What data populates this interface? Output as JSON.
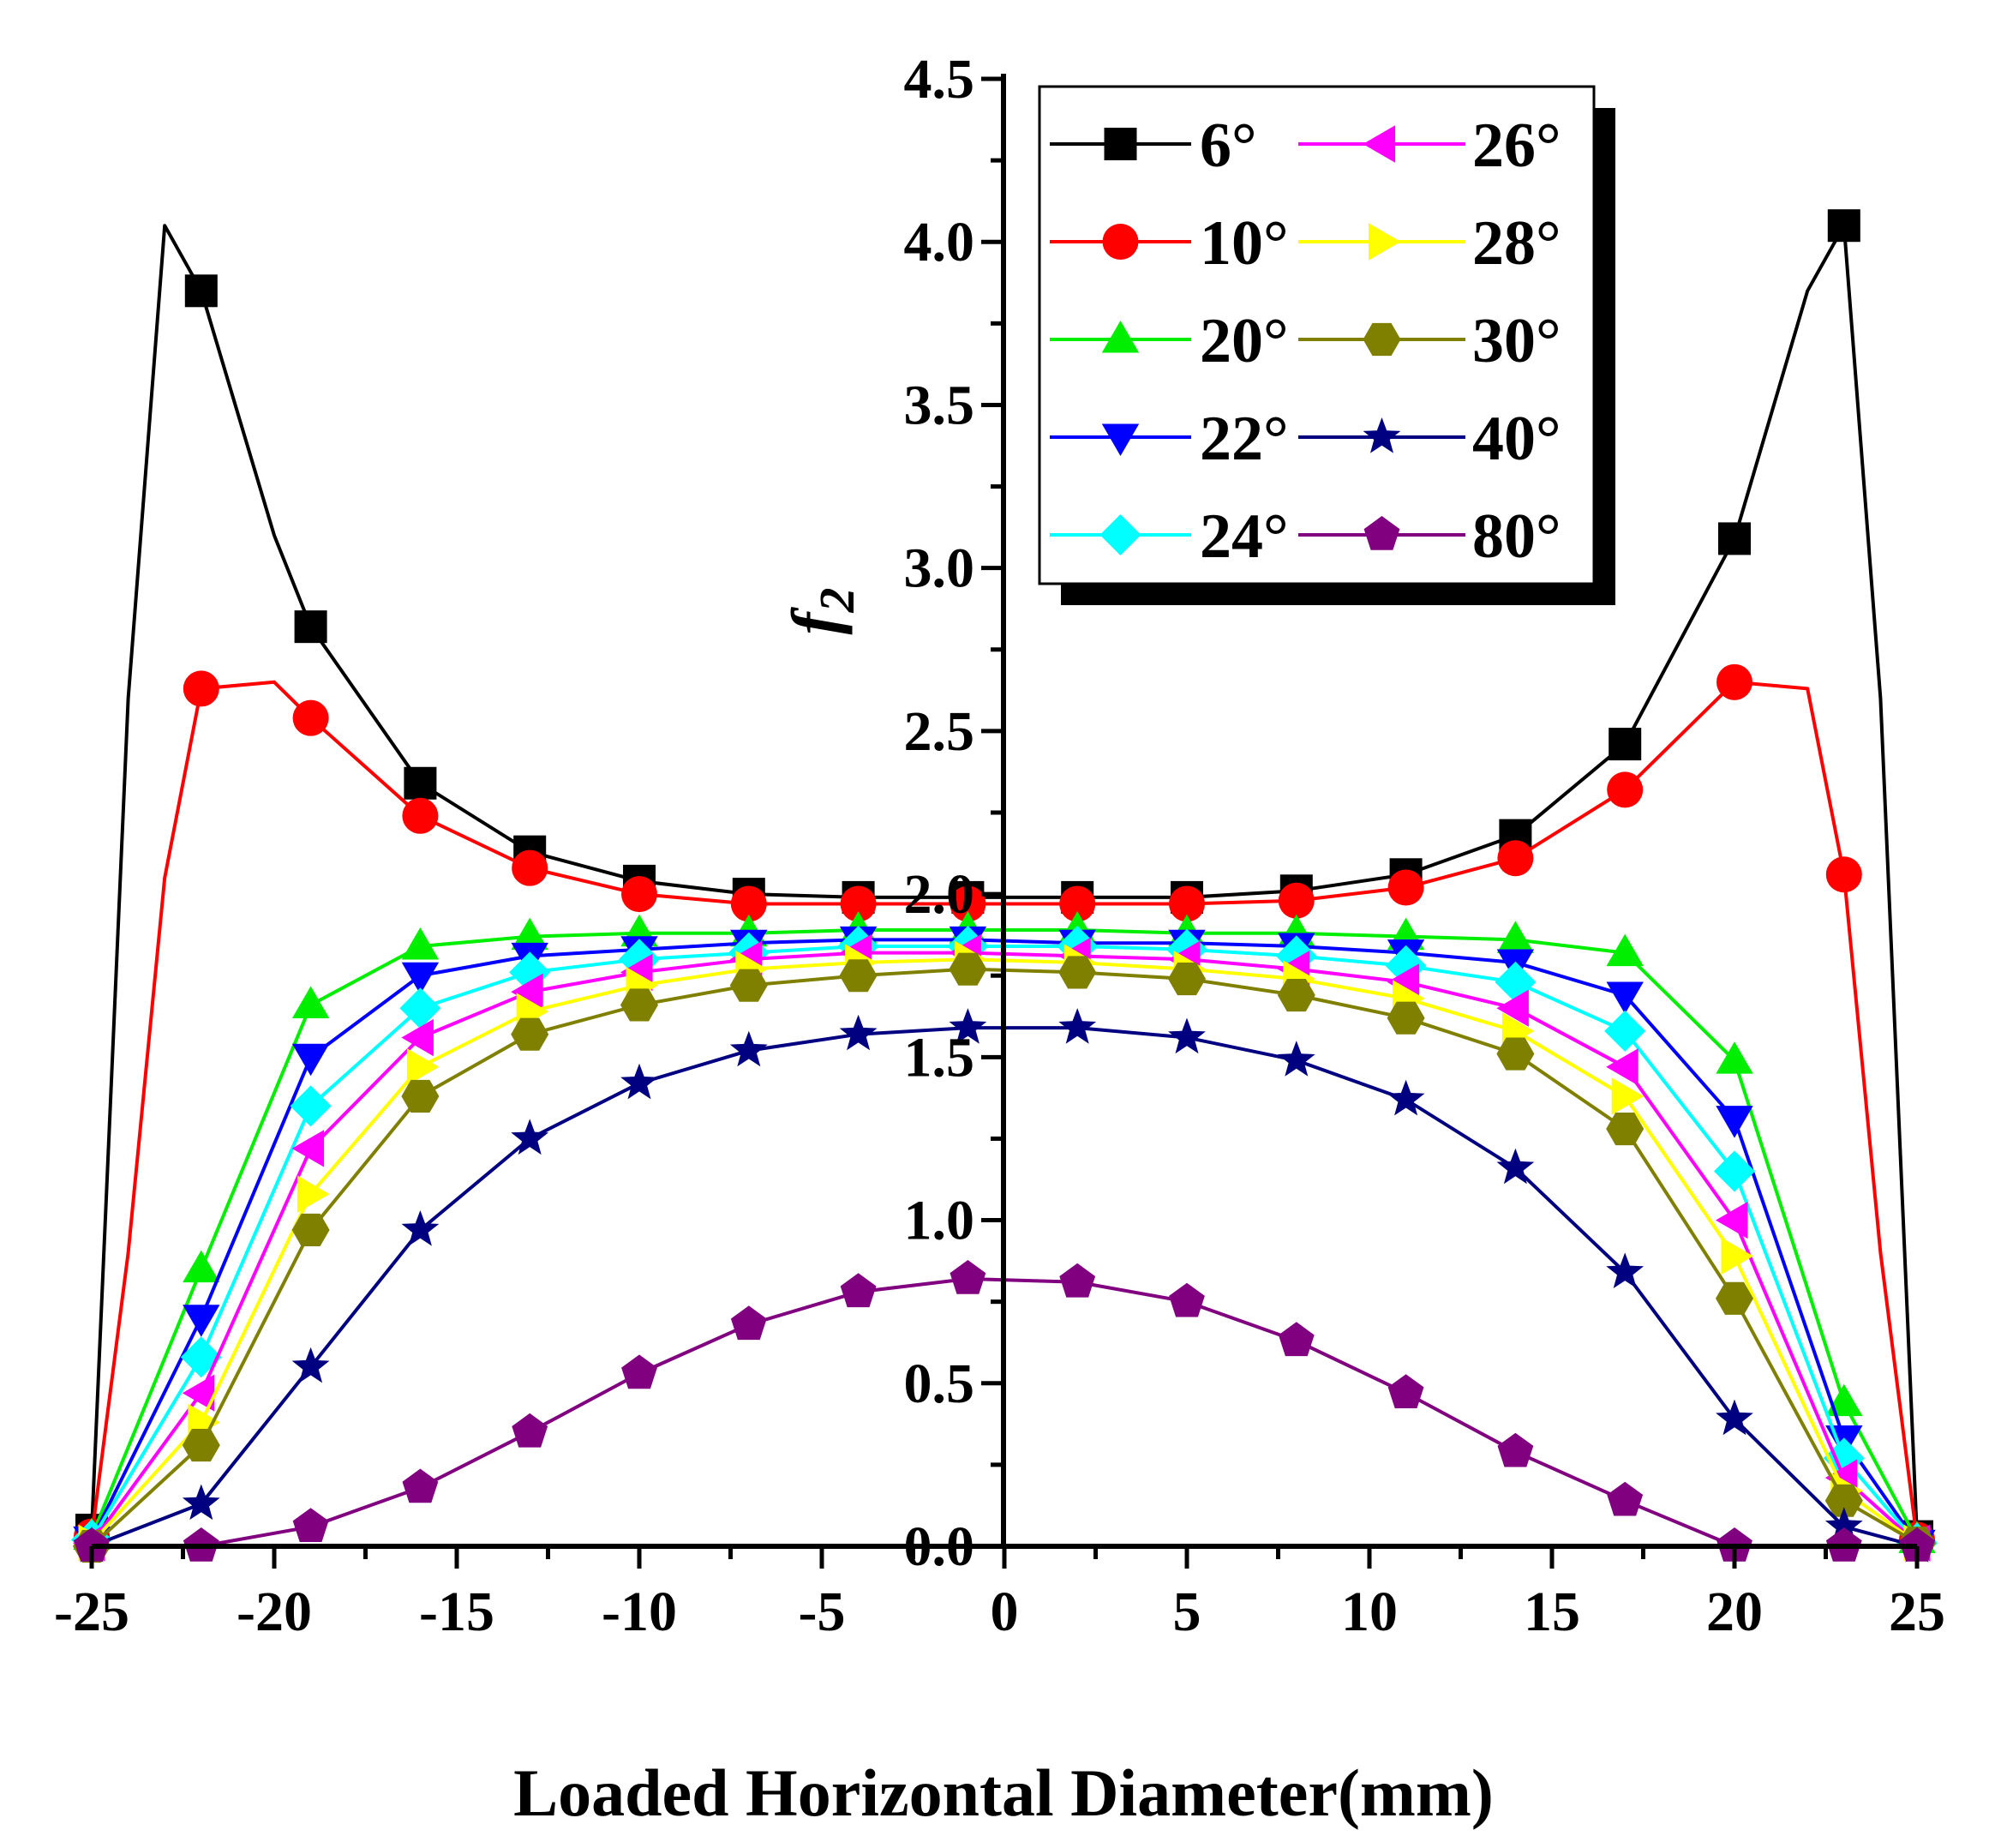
{
  "chart_data": {
    "type": "line",
    "title": "",
    "xlabel": "Loaded Horizontal Diameter(mm)",
    "ylabel": "f",
    "ylabel_subscript": "2",
    "xlim": [
      -25,
      25
    ],
    "ylim": [
      0,
      4.5
    ],
    "xticks": [
      -25,
      -20,
      -15,
      -10,
      -5,
      0,
      5,
      10,
      15,
      20,
      25
    ],
    "xtick_labels": [
      "-25",
      "-20",
      "-15",
      "-10",
      "-5",
      "0",
      "5",
      "10",
      "15",
      "20",
      "25"
    ],
    "yticks": [
      0,
      0.5,
      1,
      1.5,
      2,
      2.5,
      3,
      3.5,
      4,
      4.5
    ],
    "ytick_labels": [
      "0.0",
      "0.5",
      "1.0",
      "1.5",
      "2.0",
      "2.5",
      "3.0",
      "3.5",
      "4.0",
      "4.5"
    ],
    "grid": false,
    "legend_position": "top-right",
    "marker_x": [
      -25,
      -22,
      -19,
      -16,
      -13,
      -10,
      -7,
      -4,
      -1,
      2,
      5,
      8,
      11,
      14,
      17,
      20,
      23,
      25
    ],
    "series": [
      {
        "name": "6°",
        "color": "#000000",
        "marker": "square",
        "values": [
          0.05,
          3.85,
          2.82,
          2.34,
          2.13,
          2.04,
          2.0,
          1.99,
          1.99,
          1.99,
          1.99,
          2.01,
          2.06,
          2.18,
          2.46,
          3.09,
          4.05,
          0.03
        ]
      },
      {
        "name": "10°",
        "color": "#ff0000",
        "marker": "circle",
        "values": [
          0.03,
          2.63,
          2.54,
          2.24,
          2.08,
          2.0,
          1.97,
          1.97,
          1.97,
          1.97,
          1.97,
          1.98,
          2.02,
          2.11,
          2.32,
          2.65,
          2.06,
          0.02
        ]
      },
      {
        "name": "20°",
        "color": "#00ee00",
        "marker": "triangle-up",
        "values": [
          0.03,
          0.85,
          1.66,
          1.84,
          1.87,
          1.88,
          1.88,
          1.89,
          1.89,
          1.89,
          1.88,
          1.88,
          1.87,
          1.86,
          1.82,
          1.49,
          0.44,
          0.02
        ]
      },
      {
        "name": "22°",
        "color": "#0000ff",
        "marker": "triangle-down",
        "values": [
          0.02,
          0.7,
          1.5,
          1.75,
          1.81,
          1.83,
          1.85,
          1.86,
          1.86,
          1.85,
          1.85,
          1.84,
          1.82,
          1.79,
          1.69,
          1.31,
          0.33,
          0.01
        ]
      },
      {
        "name": "24°",
        "color": "#00ffff",
        "marker": "diamond",
        "values": [
          0.02,
          0.58,
          1.35,
          1.65,
          1.76,
          1.8,
          1.82,
          1.84,
          1.84,
          1.84,
          1.83,
          1.81,
          1.78,
          1.73,
          1.58,
          1.15,
          0.27,
          0.01
        ]
      },
      {
        "name": "26°",
        "color": "#ff00ff",
        "marker": "triangle-left",
        "values": [
          0.01,
          0.47,
          1.22,
          1.56,
          1.7,
          1.76,
          1.8,
          1.82,
          1.82,
          1.81,
          1.8,
          1.77,
          1.73,
          1.65,
          1.47,
          1.0,
          0.21,
          0.01
        ]
      },
      {
        "name": "28°",
        "color": "#ffff00",
        "marker": "triangle-right",
        "values": [
          0.01,
          0.38,
          1.08,
          1.47,
          1.64,
          1.72,
          1.77,
          1.79,
          1.8,
          1.79,
          1.77,
          1.74,
          1.68,
          1.58,
          1.38,
          0.89,
          0.17,
          0.01
        ]
      },
      {
        "name": "30°",
        "color": "#808000",
        "marker": "hexagon",
        "values": [
          0.0,
          0.31,
          0.97,
          1.38,
          1.57,
          1.66,
          1.72,
          1.75,
          1.77,
          1.76,
          1.74,
          1.69,
          1.62,
          1.51,
          1.28,
          0.76,
          0.14,
          0.01
        ]
      },
      {
        "name": "40°",
        "color": "#000080",
        "marker": "star",
        "values": [
          0.0,
          0.13,
          0.55,
          0.97,
          1.25,
          1.42,
          1.52,
          1.57,
          1.59,
          1.59,
          1.56,
          1.49,
          1.37,
          1.16,
          0.84,
          0.39,
          0.06,
          0.0
        ]
      },
      {
        "name": "80°",
        "color": "#800080",
        "marker": "pentagon",
        "values": [
          0.0,
          0.0,
          0.06,
          0.18,
          0.35,
          0.53,
          0.68,
          0.78,
          0.82,
          0.81,
          0.75,
          0.63,
          0.47,
          0.29,
          0.14,
          0.0,
          0.0,
          0.0
        ]
      }
    ],
    "extra_curve_points": {
      "6°": [
        [
          -24,
          2.6
        ],
        [
          -23,
          4.05
        ],
        [
          -20,
          3.1
        ],
        [
          22,
          3.85
        ],
        [
          24,
          2.6
        ]
      ],
      "10°": [
        [
          -24,
          0.9
        ],
        [
          -23,
          2.05
        ],
        [
          -20,
          2.65
        ],
        [
          22,
          2.63
        ],
        [
          24,
          0.9
        ]
      ]
    }
  }
}
